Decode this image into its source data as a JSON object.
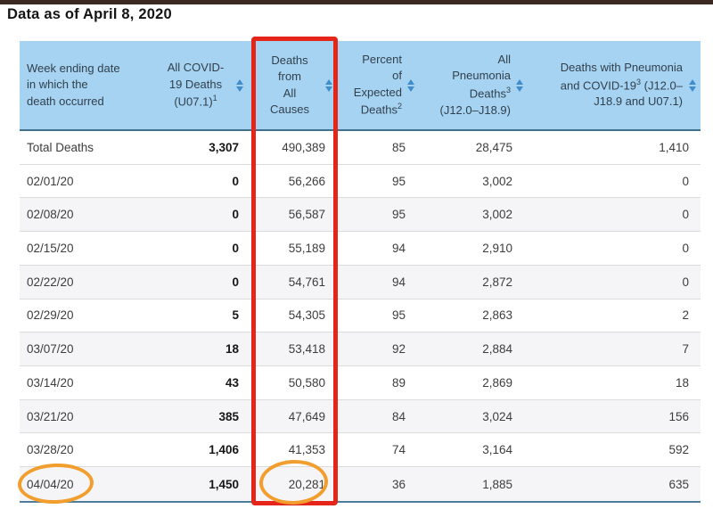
{
  "page": {
    "title": "Data as of April 8, 2020"
  },
  "table": {
    "header": {
      "week": {
        "l1": "Week ending date",
        "l2": "in which the",
        "l3": "death occurred"
      },
      "covid": {
        "l1": "All COVID-",
        "l2": "19 Deaths",
        "l3a": "(U07.1)",
        "sup": "1"
      },
      "all_causes": {
        "l1": "Deaths",
        "l2": "from",
        "l3": "All",
        "l4": "Causes"
      },
      "percent": {
        "l1": "Percent",
        "l2": "of",
        "l3": "Expected",
        "l4a": "Deaths",
        "sup": "2"
      },
      "pneumonia": {
        "l1": "All",
        "l2": "Pneumonia",
        "l3a": "Deaths",
        "sup": "3",
        "l4": "(J12.0–J18.9)"
      },
      "pneu_covid": {
        "l1": "Deaths with Pneumonia",
        "l2a": "and COVID-19",
        "sup": "3",
        "l2b": " (J12.0–",
        "l3": "J18.9 and U07.1)"
      }
    },
    "rows": [
      {
        "date": "Total Deaths",
        "covid": "3,307",
        "all_causes": "490,389",
        "percent": "85",
        "pneumonia": "28,475",
        "pneu_covid": "1,410"
      },
      {
        "date": "02/01/20",
        "covid": "0",
        "all_causes": "56,266",
        "percent": "95",
        "pneumonia": "3,002",
        "pneu_covid": "0"
      },
      {
        "date": "02/08/20",
        "covid": "0",
        "all_causes": "56,587",
        "percent": "95",
        "pneumonia": "3,002",
        "pneu_covid": "0"
      },
      {
        "date": "02/15/20",
        "covid": "0",
        "all_causes": "55,189",
        "percent": "94",
        "pneumonia": "2,910",
        "pneu_covid": "0"
      },
      {
        "date": "02/22/20",
        "covid": "0",
        "all_causes": "54,761",
        "percent": "94",
        "pneumonia": "2,872",
        "pneu_covid": "0"
      },
      {
        "date": "02/29/20",
        "covid": "5",
        "all_causes": "54,305",
        "percent": "95",
        "pneumonia": "2,863",
        "pneu_covid": "2"
      },
      {
        "date": "03/07/20",
        "covid": "18",
        "all_causes": "53,418",
        "percent": "92",
        "pneumonia": "2,884",
        "pneu_covid": "7"
      },
      {
        "date": "03/14/20",
        "covid": "43",
        "all_causes": "50,580",
        "percent": "89",
        "pneumonia": "2,869",
        "pneu_covid": "18"
      },
      {
        "date": "03/21/20",
        "covid": "385",
        "all_causes": "47,649",
        "percent": "84",
        "pneumonia": "3,024",
        "pneu_covid": "156"
      },
      {
        "date": "03/28/20",
        "covid": "1,406",
        "all_causes": "41,353",
        "percent": "74",
        "pneumonia": "3,164",
        "pneu_covid": "592"
      },
      {
        "date": "04/04/20",
        "covid": "1,450",
        "all_causes": "20,281",
        "percent": "36",
        "pneumonia": "1,885",
        "pneu_covid": "635"
      }
    ]
  },
  "annotations": {
    "red_box_target": "Deaths from All Causes column",
    "circle_targets": [
      "04/04/20",
      "20,281"
    ]
  },
  "colors": {
    "header_bg": "#a6d3f2",
    "header_text": "#31404d",
    "sort_icon_blue": "#3e8ecb",
    "header_bottom_border": "#41708f",
    "table_bottom_border": "#4f7e9d",
    "alt_row_bg": "#f5f5f7",
    "top_bar": "#3b2a22",
    "highlight_red": "#e5251a",
    "highlight_orange": "#f19e2e"
  }
}
